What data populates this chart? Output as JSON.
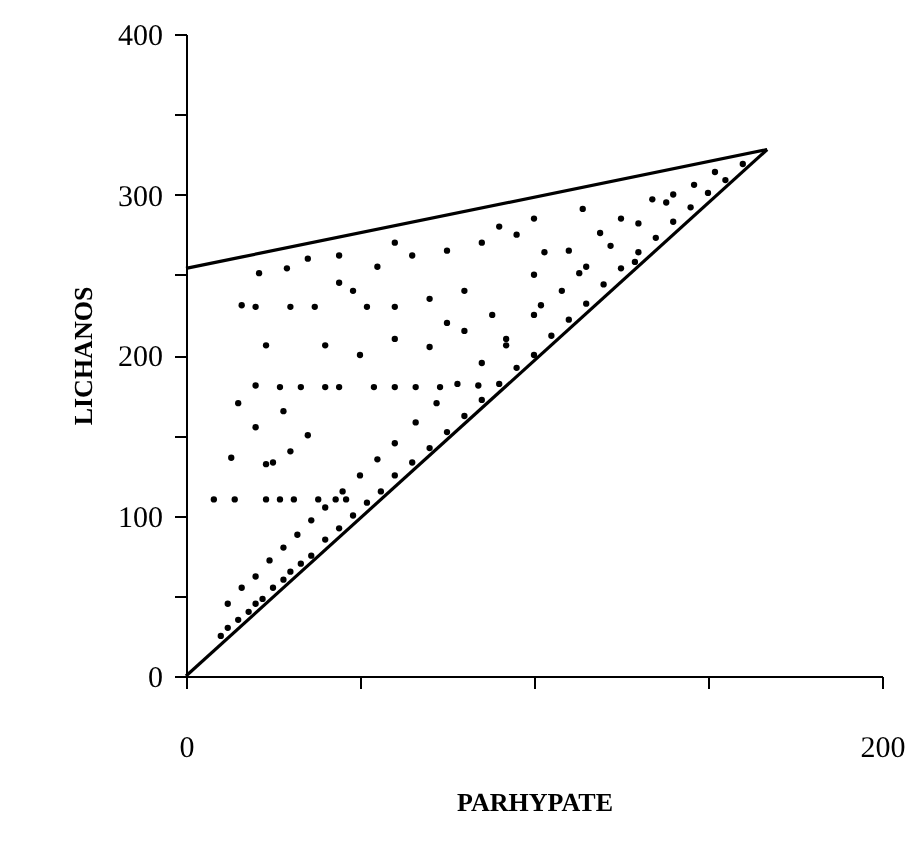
{
  "chart_data": {
    "type": "scatter",
    "xlabel": "PARHYPATE",
    "ylabel": "LICHANOS",
    "xlim": [
      0,
      200
    ],
    "ylim": [
      0,
      400
    ],
    "xticks": [
      0,
      {
        "value": 50,
        "label": null
      },
      {
        "value": 100,
        "label": null
      },
      {
        "value": 150,
        "label": null
      },
      200
    ],
    "yticks": [
      0,
      {
        "value": 50,
        "label": null
      },
      100,
      {
        "value": 150,
        "label": null
      },
      200,
      {
        "value": 250,
        "label": null
      },
      300,
      {
        "value": 350,
        "label": null
      },
      400
    ],
    "grid": false,
    "marker": "circle",
    "series": [
      {
        "color": "#000000",
        "x": [
          10,
          12,
          15,
          18,
          20,
          22,
          25,
          28,
          30,
          33,
          36,
          40,
          44,
          48,
          52,
          56,
          60,
          65,
          70,
          75,
          80,
          85,
          90,
          95,
          100,
          105,
          110,
          115,
          120,
          125,
          130,
          135,
          140,
          145,
          150,
          155,
          160,
          12,
          16,
          20,
          24,
          28,
          32,
          36,
          40,
          45,
          50,
          55,
          60,
          66,
          72,
          78,
          85,
          92,
          100,
          108,
          115,
          122,
          130,
          138,
          146,
          8,
          14,
          23,
          27,
          31,
          38,
          43,
          46,
          13,
          23,
          25,
          30,
          35,
          20,
          28,
          15,
          20,
          27,
          33,
          40,
          44,
          54,
          60,
          66,
          73,
          84,
          23,
          40,
          50,
          60,
          70,
          80,
          92,
          16,
          20,
          30,
          37,
          52,
          60,
          70,
          80,
          102,
          21,
          29,
          44,
          44,
          55,
          65,
          75,
          85,
          95,
          103,
          113,
          119,
          114,
          129,
          134,
          152,
          140,
          100,
          90,
          60,
          35,
          48,
          75,
          88,
          100,
          110,
          125
        ],
        "values": [
          25,
          30,
          35,
          40,
          45,
          48,
          55,
          60,
          65,
          70,
          75,
          85,
          92,
          100,
          108,
          115,
          125,
          133,
          142,
          152,
          162,
          172,
          182,
          192,
          200,
          212,
          222,
          232,
          244,
          254,
          264,
          273,
          283,
          292,
          301,
          309,
          319,
          45,
          55,
          62,
          72,
          80,
          88,
          97,
          105,
          115,
          125,
          135,
          145,
          158,
          170,
          182,
          195,
          210,
          225,
          240,
          255,
          268,
          282,
          295,
          306,
          110,
          110,
          110,
          110,
          110,
          110,
          110,
          110,
          136,
          132,
          133,
          140,
          150,
          155,
          165,
          170,
          181,
          180,
          180,
          180,
          180,
          180,
          180,
          180,
          180,
          181,
          206,
          206,
          200,
          210,
          205,
          215,
          206,
          231,
          230,
          230,
          230,
          230,
          230,
          235,
          240,
          231,
          251,
          254,
          245,
          262,
          255,
          262,
          265,
          270,
          275,
          264,
          251,
          276,
          291,
          258,
          297,
          314,
          300,
          285,
          280,
          270,
          260,
          240,
          220,
          225,
          250,
          265,
          285
        ]
      },
      {
        "type": "line",
        "marker": "none",
        "color": "#000000",
        "x": [
          0,
          167
        ],
        "values": [
          0,
          328
        ]
      },
      {
        "type": "line",
        "marker": "none",
        "color": "#000000",
        "x": [
          0,
          167
        ],
        "values": [
          254,
          328
        ]
      }
    ]
  }
}
